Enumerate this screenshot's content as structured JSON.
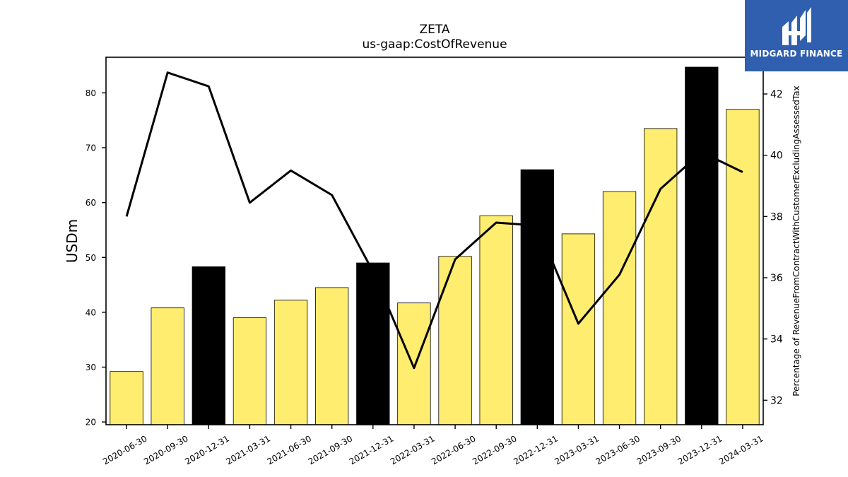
{
  "brand": {
    "name": "MIDGARD FINANCE",
    "bg": "#2f5fae"
  },
  "chart_data": {
    "type": "bar",
    "title": "ZETA",
    "subtitle": "us-gaap:CostOfRevenue",
    "ylabel": "USDm",
    "y2label": "Percentage of RevenueFromContractWithCustomerExcludingAssessedTax",
    "ylim": [
      19.5,
      86.5
    ],
    "y2lim": [
      31.2,
      43.2
    ],
    "yticks": [
      20,
      30,
      40,
      50,
      60,
      70,
      80
    ],
    "y2ticks": [
      32,
      34,
      36,
      38,
      40,
      42
    ],
    "grid": false,
    "categories": [
      "2020-06-30",
      "2020-09-30",
      "2020-12-31",
      "2021-03-31",
      "2021-06-30",
      "2021-09-30",
      "2021-12-31",
      "2022-03-31",
      "2022-06-30",
      "2022-09-30",
      "2022-12-31",
      "2023-03-31",
      "2023-06-30",
      "2023-09-30",
      "2023-12-31",
      "2024-03-31"
    ],
    "series": [
      {
        "type": "bar",
        "axis": "left",
        "values": [
          29.2,
          40.8,
          48.3,
          39.0,
          42.2,
          44.5,
          49.0,
          41.7,
          50.2,
          57.6,
          66.0,
          54.3,
          62.0,
          73.5,
          84.7,
          77.0
        ],
        "colors": [
          "#ffed6f",
          "#ffed6f",
          "#000000",
          "#ffed6f",
          "#ffed6f",
          "#ffed6f",
          "#000000",
          "#ffed6f",
          "#ffed6f",
          "#ffed6f",
          "#000000",
          "#ffed6f",
          "#ffed6f",
          "#ffed6f",
          "#000000",
          "#ffed6f"
        ]
      },
      {
        "type": "line",
        "axis": "right",
        "color": "#000000",
        "values": [
          38.0,
          42.7,
          42.25,
          38.45,
          39.5,
          38.7,
          36.2,
          33.05,
          36.6,
          37.8,
          37.7,
          34.5,
          36.1,
          38.9,
          40.1,
          39.45
        ]
      }
    ]
  }
}
